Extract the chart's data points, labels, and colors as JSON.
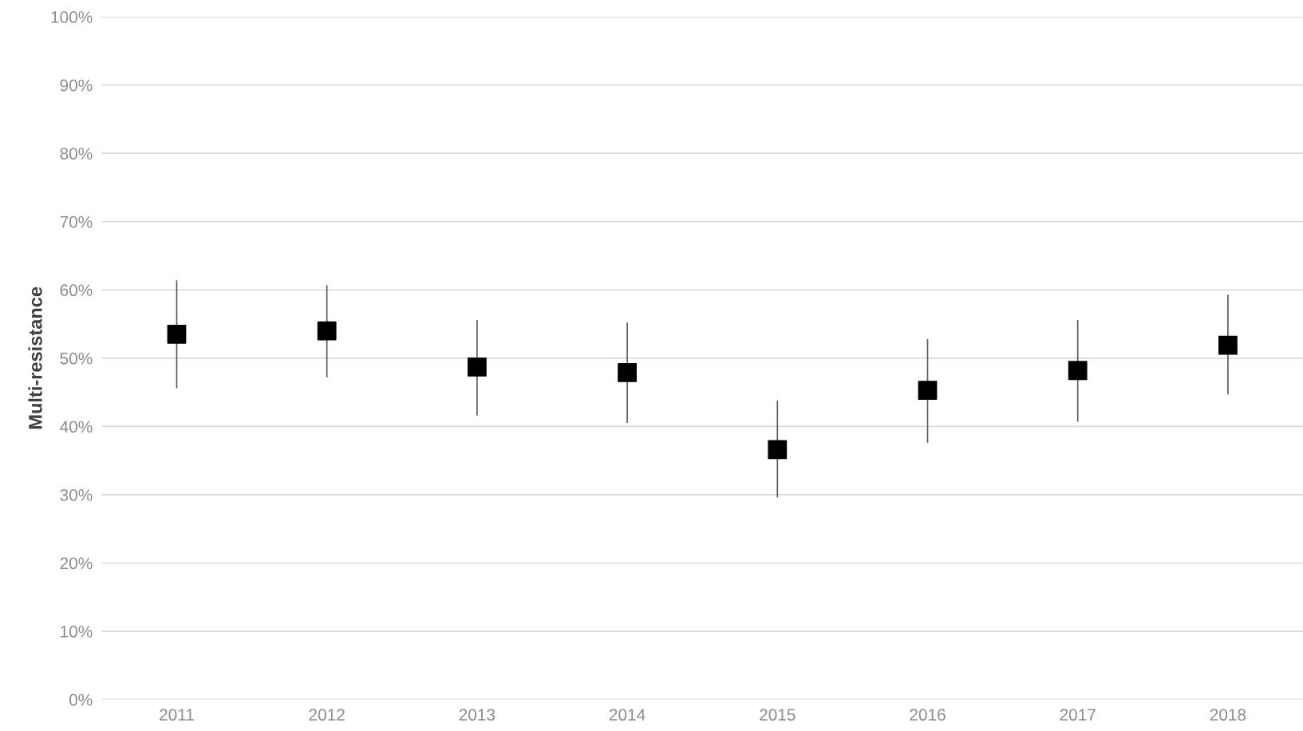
{
  "chart_data": {
    "type": "scatter",
    "ylabel": "Multi-resistance",
    "categories": [
      "2011",
      "2012",
      "2013",
      "2014",
      "2015",
      "2016",
      "2017",
      "2018"
    ],
    "series": [
      {
        "color": "#000000",
        "values": [
          53.5,
          54.0,
          48.7,
          47.9,
          36.6,
          45.3,
          48.2,
          51.9
        ],
        "errors": [
          [
            45.7,
            61.3
          ],
          [
            47.3,
            60.6
          ],
          [
            41.7,
            55.5
          ],
          [
            40.6,
            55.1
          ],
          [
            29.7,
            43.7
          ],
          [
            37.7,
            52.7
          ],
          [
            40.8,
            55.5
          ],
          [
            44.8,
            59.2
          ]
        ]
      }
    ],
    "marker": "square",
    "ylim": [
      0,
      100
    ],
    "yticks": [
      {
        "value": 0,
        "label": "0%"
      },
      {
        "value": 10,
        "label": "10%"
      },
      {
        "value": 20,
        "label": "20%"
      },
      {
        "value": 30,
        "label": "30%"
      },
      {
        "value": 40,
        "label": "40%"
      },
      {
        "value": 50,
        "label": "50%"
      },
      {
        "value": 60,
        "label": "60%"
      },
      {
        "value": 70,
        "label": "70%"
      },
      {
        "value": 80,
        "label": "80%"
      },
      {
        "value": 90,
        "label": "90%"
      },
      {
        "value": 100,
        "label": "100%"
      }
    ],
    "grid": "y"
  }
}
